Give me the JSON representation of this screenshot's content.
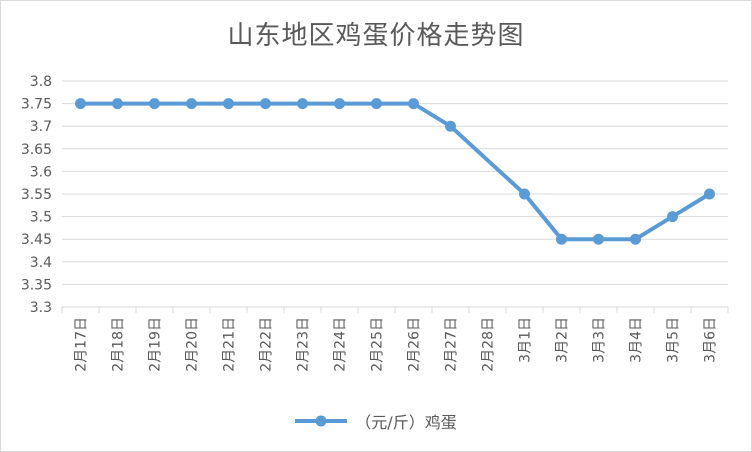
{
  "chart_data": {
    "type": "line",
    "title": "山东地区鸡蛋价格走势图",
    "categories": [
      "2月17日",
      "2月18日",
      "2月19日",
      "2月20日",
      "2月21日",
      "2月22日",
      "2月23日",
      "2月24日",
      "2月25日",
      "2月26日",
      "2月27日",
      "2月28日",
      "3月1日",
      "3月2日",
      "3月3日",
      "3月4日",
      "3月5日",
      "3月6日"
    ],
    "series": [
      {
        "name": "（元/斤）鸡蛋",
        "values": [
          3.75,
          3.75,
          3.75,
          3.75,
          3.75,
          3.75,
          3.75,
          3.75,
          3.75,
          3.75,
          3.7,
          null,
          3.55,
          3.45,
          3.45,
          3.45,
          3.5,
          3.55
        ]
      }
    ],
    "ylim": [
      3.3,
      3.8
    ],
    "yticks": [
      "3.8",
      "3.75",
      "3.7",
      "3.65",
      "3.6",
      "3.55",
      "3.5",
      "3.45",
      "3.4",
      "3.35",
      "3.3"
    ],
    "grid": true,
    "legend_position": "bottom",
    "colors": {
      "line": "#5b9bd5",
      "grid": "#d9d9d9",
      "text": "#595959"
    }
  }
}
